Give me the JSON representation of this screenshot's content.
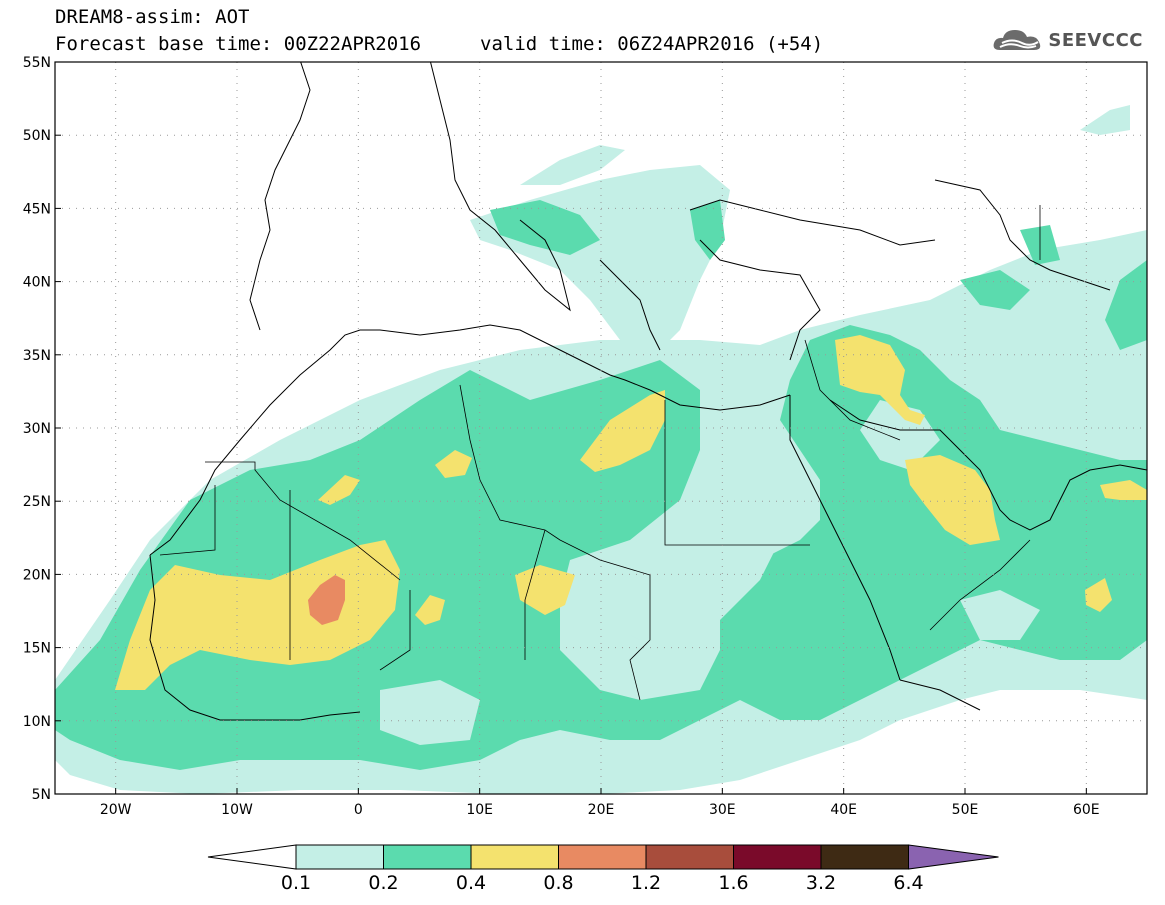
{
  "header": {
    "line1": "DREAM8-assim: AOT",
    "base": "Forecast base time: 00Z22APR2016",
    "valid": "valid time: 06Z24APR2016 (+54)",
    "logo_text": "SEEVCCC",
    "logo_icon": "cloud-icon"
  },
  "map": {
    "lon_range": [
      -25,
      65
    ],
    "lat_range": [
      5,
      55
    ],
    "lon_ticks": [
      {
        "value": -20,
        "label": "20W"
      },
      {
        "value": -10,
        "label": "10W"
      },
      {
        "value": 0,
        "label": "0"
      },
      {
        "value": 10,
        "label": "10E"
      },
      {
        "value": 20,
        "label": "20E"
      },
      {
        "value": 30,
        "label": "30E"
      },
      {
        "value": 40,
        "label": "40E"
      },
      {
        "value": 50,
        "label": "50E"
      },
      {
        "value": 60,
        "label": "60E"
      }
    ],
    "lat_ticks": [
      {
        "value": 55,
        "label": "55N"
      },
      {
        "value": 50,
        "label": "50N"
      },
      {
        "value": 45,
        "label": "45N"
      },
      {
        "value": 40,
        "label": "40N"
      },
      {
        "value": 35,
        "label": "35N"
      },
      {
        "value": 30,
        "label": "30N"
      },
      {
        "value": 25,
        "label": "25N"
      },
      {
        "value": 20,
        "label": "20N"
      },
      {
        "value": 15,
        "label": "15N"
      },
      {
        "value": 10,
        "label": "10N"
      },
      {
        "value": 5,
        "label": "5N"
      }
    ],
    "grid": "dotted"
  },
  "legend": {
    "levels": [
      "0.1",
      "0.2",
      "0.4",
      "0.8",
      "1.2",
      "1.6",
      "3.2",
      "6.4"
    ],
    "colors": [
      "#c4efe6",
      "#5bdbae",
      "#f4e26e",
      "#e88a62",
      "#a84d3c",
      "#7a0a2a",
      "#3e2a14"
    ],
    "below_color": "#ffffff",
    "above_color": "#8a63b0"
  },
  "colors": {
    "c1": "#c4efe6",
    "c2": "#5bdbae",
    "c3": "#f4e26e",
    "c4": "#e88a62"
  }
}
